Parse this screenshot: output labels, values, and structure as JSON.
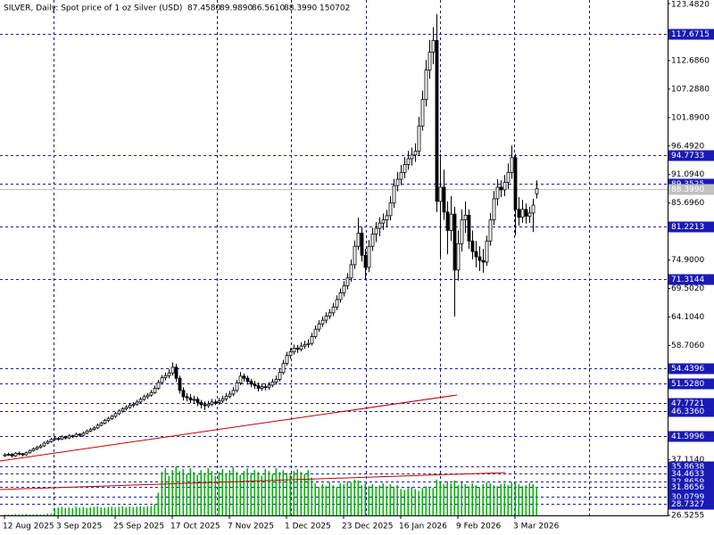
{
  "chart_data": {
    "type": "candlestick",
    "title": "SILVER, Daily:  Spot price of 1 oz Silver (USD)",
    "header_ohlc": [
      "87.4580",
      "89.9890",
      "86.5610",
      "88.3990"
    ],
    "categories": [
      "12 Aug 2025",
      null,
      null,
      null,
      null,
      null,
      null,
      null,
      null,
      null,
      null,
      null,
      null,
      null,
      null,
      "3 Sep 2025",
      null,
      null,
      null,
      null,
      null,
      null,
      null,
      null,
      null,
      null,
      null,
      null,
      null,
      null,
      null,
      "25 Sep 2025",
      null,
      null,
      null,
      null,
      null,
      null,
      null,
      null,
      null,
      null,
      null,
      null,
      null,
      null,
      null,
      "17 Oct 2025",
      null,
      null,
      null,
      null,
      null,
      null,
      null,
      null,
      null,
      null,
      null,
      null,
      null,
      null,
      null,
      "7 Nov 2025",
      null,
      null,
      null,
      null,
      null,
      null,
      null,
      null,
      null,
      null,
      null,
      null,
      null,
      null,
      null,
      "1 Dec 2025",
      null,
      null,
      null,
      null,
      null,
      null,
      null,
      null,
      null,
      null,
      null,
      null,
      null,
      null,
      null,
      "23 Dec 2025",
      null,
      null,
      null,
      null,
      null,
      null,
      null,
      null,
      null,
      null,
      null,
      null,
      null,
      null,
      null,
      "16 Jan 2026",
      null,
      null,
      null,
      null,
      null,
      null,
      null,
      null,
      null,
      null,
      null,
      null,
      null,
      null,
      null,
      "9 Feb 2026",
      null,
      null,
      null,
      null,
      null,
      null,
      null,
      null,
      null,
      null,
      null,
      null,
      null,
      null,
      null,
      "3 Mar 2026",
      null,
      null,
      null,
      null,
      null,
      null
    ],
    "ohlc": [
      [
        37.8,
        38.3,
        37.6,
        38.0
      ],
      [
        38.0,
        38.4,
        37.8,
        38.1
      ],
      [
        38.1,
        38.3,
        37.5,
        37.8
      ],
      [
        37.8,
        38.5,
        37.6,
        38.3
      ],
      [
        38.3,
        38.6,
        37.9,
        38.2
      ],
      [
        38.2,
        38.4,
        37.7,
        38.0
      ],
      [
        38.0,
        38.6,
        37.8,
        38.4
      ],
      [
        38.4,
        39.0,
        38.2,
        38.8
      ],
      [
        38.8,
        39.4,
        38.6,
        39.1
      ],
      [
        39.1,
        39.7,
        38.9,
        39.4
      ],
      [
        39.4,
        40.0,
        39.2,
        39.7
      ],
      [
        39.7,
        40.5,
        39.5,
        40.2
      ],
      [
        40.2,
        40.8,
        40.0,
        40.5
      ],
      [
        40.5,
        41.2,
        40.3,
        40.9
      ],
      [
        40.9,
        41.5,
        40.7,
        41.1
      ],
      [
        41.1,
        41.4,
        40.7,
        41.0
      ],
      [
        41.0,
        41.7,
        40.8,
        41.4
      ],
      [
        41.4,
        41.6,
        40.9,
        41.2
      ],
      [
        41.2,
        41.9,
        41.0,
        41.6
      ],
      [
        41.6,
        41.8,
        41.2,
        41.5
      ],
      [
        41.5,
        42.2,
        41.3,
        41.9
      ],
      [
        41.9,
        42.1,
        41.4,
        41.7
      ],
      [
        41.7,
        42.4,
        41.5,
        42.1
      ],
      [
        42.1,
        42.8,
        41.9,
        42.5
      ],
      [
        42.5,
        43.1,
        42.3,
        42.8
      ],
      [
        42.8,
        43.4,
        42.6,
        43.1
      ],
      [
        43.1,
        43.9,
        42.9,
        43.6
      ],
      [
        43.6,
        44.3,
        43.4,
        44.0
      ],
      [
        44.0,
        44.8,
        43.8,
        44.5
      ],
      [
        44.5,
        45.2,
        44.2,
        44.9
      ],
      [
        44.9,
        45.6,
        44.6,
        45.3
      ],
      [
        45.3,
        46.1,
        45.0,
        45.8
      ],
      [
        45.8,
        46.6,
        45.5,
        46.3
      ],
      [
        46.3,
        47.0,
        46.0,
        46.7
      ],
      [
        46.7,
        47.4,
        46.4,
        47.0
      ],
      [
        47.0,
        47.8,
        46.7,
        47.4
      ],
      [
        47.4,
        48.0,
        47.0,
        47.6
      ],
      [
        47.6,
        48.4,
        47.3,
        48.0
      ],
      [
        48.0,
        48.9,
        47.7,
        48.5
      ],
      [
        48.5,
        49.4,
        48.2,
        49.0
      ],
      [
        49.0,
        49.7,
        48.6,
        49.3
      ],
      [
        49.3,
        50.3,
        49.0,
        49.8
      ],
      [
        49.8,
        51.1,
        49.5,
        50.6
      ],
      [
        50.6,
        52.2,
        50.3,
        51.7
      ],
      [
        51.7,
        53.1,
        51.3,
        52.6
      ],
      [
        52.6,
        53.6,
        52.1,
        53.0
      ],
      [
        53.0,
        54.2,
        52.5,
        53.5
      ],
      [
        53.5,
        55.5,
        53.0,
        54.6
      ],
      [
        54.6,
        55.2,
        51.8,
        52.5
      ],
      [
        52.5,
        53.0,
        49.6,
        50.2
      ],
      [
        50.2,
        50.8,
        48.3,
        49.0
      ],
      [
        49.0,
        49.7,
        48.1,
        48.8
      ],
      [
        48.8,
        49.5,
        47.8,
        48.4
      ],
      [
        48.4,
        49.2,
        47.7,
        48.5
      ],
      [
        48.5,
        49.0,
        47.2,
        47.9
      ],
      [
        47.9,
        48.4,
        46.8,
        47.5
      ],
      [
        47.5,
        48.1,
        46.5,
        47.3
      ],
      [
        47.3,
        48.2,
        46.9,
        47.6
      ],
      [
        47.6,
        48.6,
        47.2,
        48.0
      ],
      [
        48.0,
        48.5,
        47.4,
        47.9
      ],
      [
        47.9,
        48.8,
        47.5,
        48.2
      ],
      [
        48.2,
        49.2,
        47.8,
        48.6
      ],
      [
        48.6,
        49.7,
        48.2,
        49.1
      ],
      [
        49.1,
        50.1,
        48.7,
        49.5
      ],
      [
        49.5,
        50.8,
        49.1,
        50.2
      ],
      [
        50.2,
        52.2,
        49.8,
        51.6
      ],
      [
        51.6,
        53.7,
        51.2,
        52.9
      ],
      [
        52.9,
        53.4,
        51.9,
        52.5
      ],
      [
        52.5,
        53.0,
        51.3,
        51.9
      ],
      [
        51.9,
        52.4,
        50.8,
        51.4
      ],
      [
        51.4,
        52.0,
        50.5,
        51.1
      ],
      [
        51.1,
        51.7,
        50.0,
        50.6
      ],
      [
        50.6,
        51.5,
        50.1,
        50.9
      ],
      [
        50.9,
        51.5,
        50.2,
        50.8
      ],
      [
        50.8,
        51.8,
        50.3,
        51.2
      ],
      [
        51.2,
        52.4,
        50.8,
        51.8
      ],
      [
        51.8,
        53.0,
        51.3,
        52.3
      ],
      [
        52.3,
        54.2,
        51.9,
        53.6
      ],
      [
        53.6,
        56.0,
        53.2,
        55.3
      ],
      [
        55.3,
        57.5,
        54.9,
        56.8
      ],
      [
        56.8,
        58.2,
        56.2,
        57.5
      ],
      [
        57.5,
        58.9,
        57.0,
        58.2
      ],
      [
        58.2,
        58.8,
        57.3,
        58.0
      ],
      [
        58.0,
        59.3,
        57.6,
        58.6
      ],
      [
        58.6,
        59.6,
        58.1,
        58.9
      ],
      [
        58.9,
        59.9,
        58.3,
        59.1
      ],
      [
        59.1,
        61.1,
        58.7,
        60.4
      ],
      [
        60.4,
        62.5,
        60.0,
        61.8
      ],
      [
        61.8,
        63.5,
        61.3,
        62.8
      ],
      [
        62.8,
        64.2,
        62.2,
        63.5
      ],
      [
        63.5,
        65.0,
        62.9,
        64.3
      ],
      [
        64.3,
        65.6,
        63.7,
        64.9
      ],
      [
        64.9,
        66.8,
        64.3,
        66.0
      ],
      [
        66.0,
        68.2,
        65.4,
        67.4
      ],
      [
        67.4,
        69.5,
        66.8,
        68.7
      ],
      [
        68.7,
        70.9,
        68.0,
        70.0
      ],
      [
        70.0,
        72.4,
        69.3,
        71.5
      ],
      [
        71.5,
        75.0,
        70.8,
        74.0
      ],
      [
        74.0,
        78.6,
        73.2,
        77.5
      ],
      [
        77.5,
        82.9,
        76.8,
        80.0
      ],
      [
        80.0,
        81.2,
        74.6,
        75.8
      ],
      [
        75.8,
        77.0,
        71.1,
        73.5
      ],
      [
        73.5,
        78.7,
        72.6,
        77.5
      ],
      [
        77.5,
        81.0,
        76.6,
        79.8
      ],
      [
        79.8,
        82.1,
        78.3,
        80.9
      ],
      [
        80.9,
        83.0,
        79.4,
        81.9
      ],
      [
        81.9,
        83.7,
        80.6,
        82.5
      ],
      [
        82.5,
        84.4,
        81.2,
        83.3
      ],
      [
        83.3,
        87.0,
        82.4,
        85.7
      ],
      [
        85.7,
        90.3,
        84.8,
        89.0
      ],
      [
        89.0,
        91.6,
        87.9,
        90.2
      ],
      [
        90.2,
        92.9,
        89.1,
        91.5
      ],
      [
        91.5,
        94.4,
        90.4,
        93.0
      ],
      [
        93.0,
        95.6,
        92.0,
        94.1
      ],
      [
        94.1,
        96.2,
        92.8,
        94.8
      ],
      [
        94.8,
        97.0,
        93.5,
        95.5
      ],
      [
        95.5,
        102.0,
        94.6,
        100.3
      ],
      [
        100.3,
        107.0,
        99.4,
        105.3
      ],
      [
        105.3,
        112.8,
        104.0,
        110.9
      ],
      [
        110.9,
        116.6,
        109.2,
        114.3
      ],
      [
        114.3,
        119.0,
        112.0,
        116.5
      ],
      [
        116.5,
        121.5,
        84.0,
        86.0
      ],
      [
        86.0,
        95.0,
        75.5,
        88.7
      ],
      [
        88.7,
        92.0,
        82.5,
        84.0
      ],
      [
        84.0,
        86.0,
        76.0,
        80.5
      ],
      [
        80.5,
        87.0,
        78.5,
        83.6
      ],
      [
        83.6,
        85.0,
        64.2,
        73.0
      ],
      [
        73.0,
        80.5,
        71.0,
        78.0
      ],
      [
        78.0,
        84.5,
        76.5,
        82.5
      ],
      [
        82.5,
        86.0,
        80.0,
        83.4
      ],
      [
        83.4,
        84.5,
        77.0,
        78.5
      ],
      [
        78.5,
        80.5,
        75.0,
        76.5
      ],
      [
        76.5,
        78.5,
        73.5,
        75.5
      ],
      [
        75.5,
        77.5,
        72.8,
        74.8
      ],
      [
        74.8,
        77.0,
        72.5,
        74.5
      ],
      [
        74.5,
        79.5,
        73.8,
        78.5
      ],
      [
        78.5,
        83.8,
        77.6,
        82.5
      ],
      [
        82.5,
        88.0,
        81.5,
        86.5
      ],
      [
        86.5,
        90.2,
        85.2,
        88.7
      ],
      [
        88.7,
        90.0,
        86.8,
        88.2
      ],
      [
        88.2,
        91.0,
        87.0,
        89.6
      ],
      [
        89.6,
        93.2,
        88.4,
        91.5
      ],
      [
        91.5,
        96.6,
        90.3,
        94.3
      ],
      [
        94.3,
        95.0,
        79.5,
        84.5
      ],
      [
        84.5,
        86.8,
        81.4,
        83.0
      ],
      [
        83.0,
        86.3,
        82.0,
        84.5
      ],
      [
        84.5,
        85.6,
        81.8,
        83.2
      ],
      [
        83.2,
        85.0,
        81.9,
        83.8
      ],
      [
        83.8,
        86.5,
        80.2,
        85.3
      ],
      [
        87.458,
        89.989,
        86.561,
        88.399
      ]
    ],
    "volumes": [
      5000,
      6000,
      4000,
      7000,
      5000,
      6000,
      8000,
      5000,
      6000,
      7000,
      5000,
      6000,
      9000,
      8000,
      38000,
      42000,
      45000,
      40000,
      43000,
      39000,
      46000,
      41000,
      44000,
      40000,
      42000,
      45000,
      47000,
      43000,
      41000,
      44000,
      46000,
      42000,
      45000,
      48000,
      43000,
      47000,
      44000,
      46000,
      49000,
      45000,
      48000,
      50000,
      60000,
      120000,
      230000,
      250000,
      210000,
      240000,
      260000,
      235000,
      245000,
      220000,
      250000,
      230000,
      215000,
      240000,
      225000,
      250000,
      235000,
      210000,
      230000,
      245000,
      220000,
      240000,
      255000,
      230000,
      215000,
      235000,
      250000,
      225000,
      240000,
      230000,
      210000,
      245000,
      235000,
      220000,
      250000,
      230000,
      240000,
      225000,
      215000,
      235000,
      245000,
      230000,
      220000,
      240000,
      200000,
      170000,
      150000,
      165000,
      155000,
      175000,
      160000,
      150000,
      170000,
      165000,
      180000,
      175000,
      190000,
      185000,
      160000,
      170000,
      155000,
      165000,
      150000,
      160000,
      170000,
      155000,
      165000,
      150000,
      160000,
      140000,
      135000,
      145000,
      150000,
      140000,
      130000,
      145000,
      155000,
      150000,
      145000,
      190000,
      175000,
      165000,
      180000,
      170000,
      185000,
      160000,
      175000,
      165000,
      155000,
      170000,
      160000,
      150000,
      165000,
      175000,
      170000,
      160000,
      155000,
      165000,
      170000,
      160000,
      175000,
      180000,
      165000,
      155000,
      160000,
      170000,
      165000,
      150702
    ],
    "ylim": [
      {
        "value": 26.5255,
        "label": "26.5255"
      },
      {
        "value": 123.482,
        "label": "123.4820"
      }
    ],
    "yticks": [
      {
        "value": 112.686,
        "label": "112.6860"
      },
      {
        "value": 107.288,
        "label": "107.2880"
      },
      {
        "value": 101.89,
        "label": "101.8900"
      },
      {
        "value": 96.492,
        "label": "96.4920"
      },
      {
        "value": 91.094,
        "label": "91.0940"
      },
      {
        "value": 85.696,
        "label": "85.6960"
      },
      {
        "value": 74.9,
        "label": "74.9000"
      },
      {
        "value": 69.502,
        "label": "69.5020"
      },
      {
        "value": 64.104,
        "label": "64.1040"
      },
      {
        "value": 58.706,
        "label": "58.7060"
      },
      {
        "value": 37.114,
        "label": "37.1140"
      }
    ],
    "levels": [
      {
        "value": 117.6715,
        "label": "117.6715"
      },
      {
        "value": 94.7733,
        "label": "94.7733"
      },
      {
        "value": 89.3525,
        "label": "89.3525"
      },
      {
        "value": 81.2213,
        "label": "81.2213"
      },
      {
        "value": 71.3144,
        "label": "71.3144"
      },
      {
        "value": 54.4396,
        "label": "54.4396"
      },
      {
        "value": 51.528,
        "label": "51.5280"
      },
      {
        "value": 47.7721,
        "label": "47.7721"
      },
      {
        "value": 46.336,
        "label": "46.3360"
      },
      {
        "value": 41.5996,
        "label": "41.5996"
      },
      {
        "value": 35.8638,
        "label": "35.8638"
      },
      {
        "value": 34.4633,
        "label": "34.4633"
      },
      {
        "value": 32.8659,
        "label": "32.8659"
      },
      {
        "value": 31.8656,
        "label": "31.8656"
      },
      {
        "value": 30.0799,
        "label": "30.0799"
      },
      {
        "value": 28.7327,
        "label": "28.7327"
      }
    ],
    "last_price": {
      "value": 88.399,
      "label": "88.3990"
    },
    "level_color": "#1a1ab4",
    "volume_color": "#00b400",
    "up_color": "#ffffff",
    "down_color": "#000000"
  }
}
